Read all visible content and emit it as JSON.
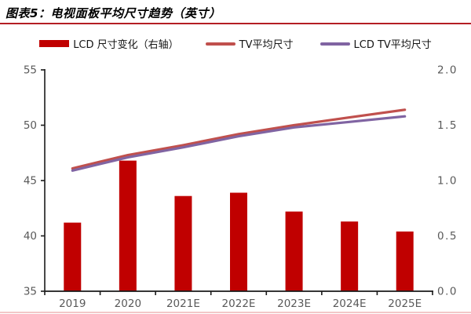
{
  "header": {
    "title": "图表5：电视面板平均尺寸趋势（英寸）"
  },
  "rules": {
    "top_rule_color": "#b41e24",
    "bottom_rule_color": "#f2c8c8"
  },
  "chart_data": {
    "type": "bar",
    "subtype": "bar+line combo, dual axis",
    "title": "电视面板平均尺寸趋势（英寸）",
    "categories": [
      "2019",
      "2020",
      "2021E",
      "2022E",
      "2023E",
      "2024E",
      "2025E"
    ],
    "bar_series": {
      "name": "LCD 尺寸变化（右轴）",
      "axis": "right",
      "color": "#c00000",
      "values": [
        0.62,
        1.18,
        0.86,
        0.89,
        0.72,
        0.63,
        0.54
      ]
    },
    "line_series": [
      {
        "name": "TV平均尺寸",
        "axis": "left",
        "color": "#c0504d",
        "values": [
          46.1,
          47.3,
          48.2,
          49.2,
          50.0,
          50.7,
          51.4
        ]
      },
      {
        "name": "LCD TV平均尺寸",
        "axis": "left",
        "color": "#8064a2",
        "values": [
          45.9,
          47.1,
          48.0,
          49.0,
          49.8,
          50.3,
          50.8
        ]
      }
    ],
    "left_axis": {
      "min": 35,
      "max": 55,
      "ticks": [
        "55",
        "50",
        "45",
        "40",
        "35"
      ]
    },
    "right_axis": {
      "min": 0.0,
      "max": 2.0,
      "ticks": [
        "2.0",
        "1.5",
        "1.0",
        "0.5",
        "0.0"
      ]
    },
    "grid": false,
    "legend_position": "top",
    "axis_line_color": "#1a1a1a",
    "tick_label_color": "#595959"
  }
}
